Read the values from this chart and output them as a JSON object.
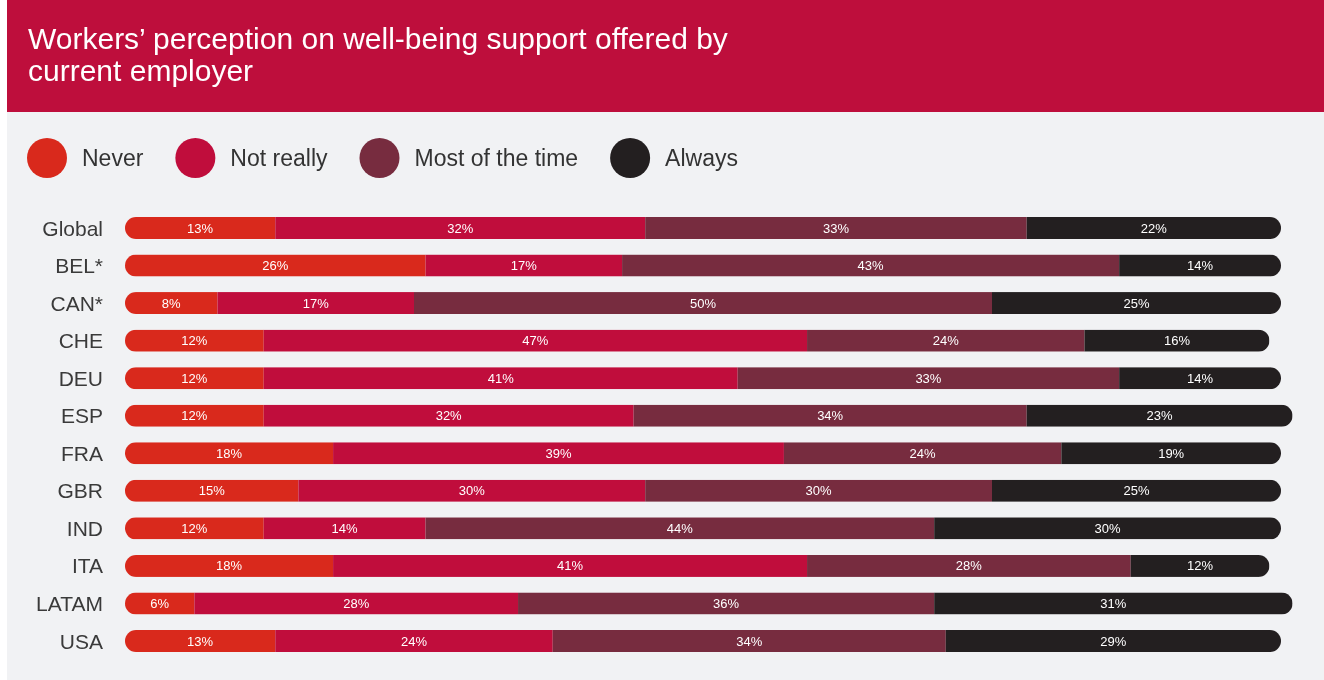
{
  "chart_data": {
    "type": "bar",
    "orientation": "horizontal",
    "stacked": true,
    "title": "Workers’ perception on well-being support offered by current employer",
    "categories": [
      "Global",
      "BEL*",
      "CAN*",
      "CHE",
      "DEU",
      "ESP",
      "FRA",
      "GBR",
      "IND",
      "ITA",
      "LATAM",
      "USA"
    ],
    "series": [
      {
        "name": "Never",
        "color": "#d9291c",
        "values": [
          13,
          26,
          8,
          12,
          12,
          12,
          18,
          15,
          12,
          18,
          6,
          13
        ],
        "value_labels": [
          "13%",
          "26%",
          "8%",
          "12%",
          "12%",
          "12%",
          "18%",
          "15%",
          "12%",
          "18%",
          "6%",
          "13%"
        ]
      },
      {
        "name": "Not really",
        "color": "#c00d3c",
        "values": [
          32,
          17,
          17,
          47,
          41,
          32,
          39,
          30,
          14,
          41,
          28,
          24
        ],
        "value_labels": [
          "32%",
          "17%",
          "17%",
          "47%",
          "41%",
          "32%",
          "39%",
          "30%",
          "14%",
          "41%",
          "28%",
          "24%"
        ]
      },
      {
        "name": "Most of the time",
        "color": "#772c3f",
        "values": [
          33,
          43,
          50,
          24,
          33,
          34,
          24,
          30,
          44,
          28,
          36,
          34
        ],
        "value_labels": [
          "33%",
          "43%",
          "50%",
          "24%",
          "33%",
          "34%",
          "24%",
          "30%",
          "44%",
          "28%",
          "36%",
          "34%"
        ]
      },
      {
        "name": "Always",
        "color": "#231f20",
        "values": [
          22,
          14,
          25,
          16,
          14,
          23,
          19,
          25,
          30,
          12,
          31,
          29
        ],
        "value_labels": [
          "22%",
          "14%",
          "25%",
          "16%",
          "14%",
          "23%",
          "19%",
          "25%",
          "30%",
          "12%",
          "31%",
          "29%"
        ]
      }
    ],
    "xlim": [
      0,
      101
    ],
    "legend": "top left",
    "tick_labels": "y"
  }
}
